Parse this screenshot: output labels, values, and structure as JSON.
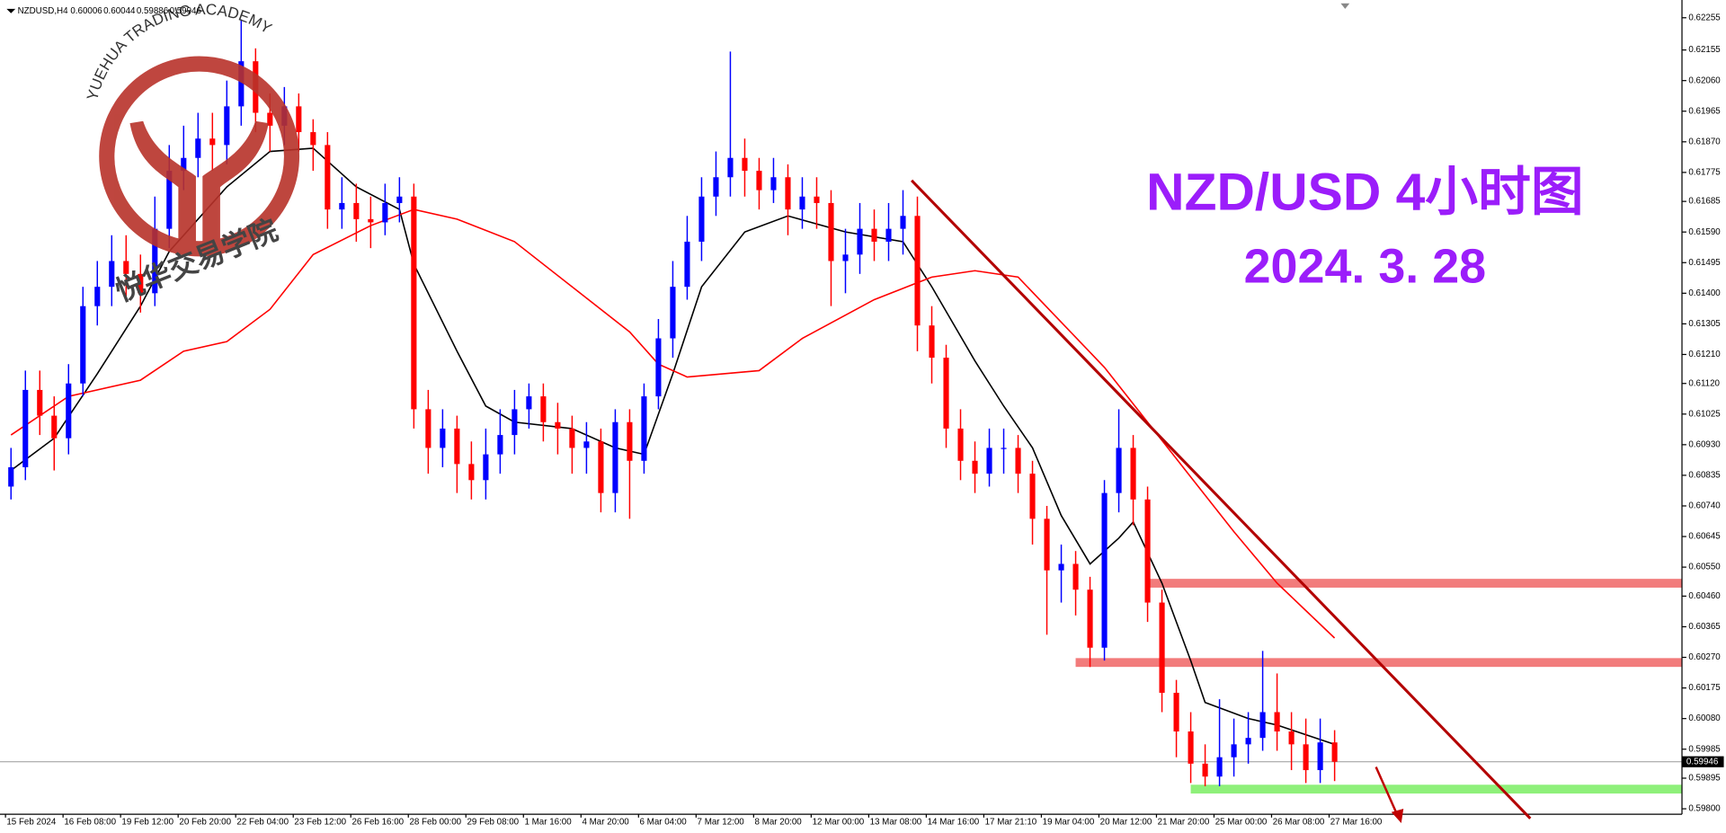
{
  "chart_data": {
    "type": "candlestick",
    "symbol": "NZDUSD,H4",
    "title": "NZD/USD 4小时图",
    "subtitle": "2024. 3. 28",
    "watermark": {
      "text_en": "YUEHUA TRADING ACADEMY",
      "text_cn": "悦华交易学院"
    },
    "up_color": "#0000ff",
    "down_color": "#ff0000",
    "categories": [
      "15 Feb 2024",
      "16 Feb 08:00",
      "19 Feb 12:00",
      "20 Feb 20:00",
      "22 Feb 04:00",
      "23 Feb 12:00",
      "26 Feb 16:00",
      "28 Feb 00:00",
      "29 Feb 08:00",
      "1 Mar 16:00",
      "4 Mar 20:00",
      "6 Mar 04:00",
      "7 Mar 12:00",
      "8 Mar 20:00",
      "12 Mar 00:00",
      "13 Mar 08:00",
      "14 Mar 16:00",
      "17 Mar 21:10",
      "19 Mar 04:00",
      "20 Mar 12:00",
      "21 Mar 20:00",
      "25 Mar 00:00",
      "26 Mar 08:00",
      "27 Mar 16:00"
    ],
    "open": [
      0.608,
      0.6086,
      0.611,
      0.6102,
      0.6095,
      0.6112,
      0.6136,
      0.6142,
      0.615,
      0.6146,
      0.614,
      0.616,
      0.6178,
      0.6182,
      0.6188,
      0.6186,
      0.6198,
      0.6212,
      0.6196,
      0.6192,
      0.6198,
      0.619,
      0.6186,
      0.6166,
      0.6168,
      0.6163,
      0.6162,
      0.6168,
      0.617,
      0.6104,
      0.6092,
      0.6098,
      0.6087,
      0.6082,
      0.609,
      0.6096,
      0.6104,
      0.6108,
      0.61,
      0.6098,
      0.6092,
      0.6094,
      0.6078,
      0.61,
      0.6088,
      0.6108,
      0.6126,
      0.6142,
      0.6156,
      0.617,
      0.6176,
      0.6182,
      0.6178,
      0.6172,
      0.6176,
      0.6166,
      0.617,
      0.6168,
      0.615,
      0.6152,
      0.616,
      0.6156,
      0.616,
      0.6164,
      0.613,
      0.612,
      0.6098,
      0.6088,
      0.6084,
      0.6092,
      0.6092,
      0.6084,
      0.607,
      0.6054,
      0.6056,
      0.6048,
      0.603,
      0.6078,
      0.6092,
      0.6076,
      0.6044,
      0.6016,
      0.6004,
      0.5994,
      0.599,
      0.5996,
      0.6,
      0.6002,
      0.601,
      0.6004,
      0.6,
      0.5992,
      0.60006
    ],
    "high": [
      0.6092,
      0.6116,
      0.6116,
      0.6108,
      0.6118,
      0.6142,
      0.615,
      0.6158,
      0.6158,
      0.6152,
      0.617,
      0.6186,
      0.6192,
      0.6196,
      0.6196,
      0.6206,
      0.6225,
      0.6216,
      0.6202,
      0.6204,
      0.6202,
      0.6194,
      0.619,
      0.6176,
      0.6174,
      0.617,
      0.6174,
      0.6176,
      0.6174,
      0.611,
      0.6104,
      0.6102,
      0.6094,
      0.6098,
      0.6104,
      0.611,
      0.6112,
      0.6112,
      0.6106,
      0.6102,
      0.61,
      0.6098,
      0.6104,
      0.6104,
      0.6112,
      0.6132,
      0.615,
      0.6164,
      0.6176,
      0.6184,
      0.6215,
      0.6188,
      0.6182,
      0.6182,
      0.618,
      0.6176,
      0.6176,
      0.6172,
      0.616,
      0.6168,
      0.6166,
      0.6168,
      0.6172,
      0.617,
      0.6136,
      0.6124,
      0.6104,
      0.6094,
      0.6098,
      0.6098,
      0.6096,
      0.6088,
      0.6074,
      0.6062,
      0.606,
      0.6052,
      0.6082,
      0.6104,
      0.6096,
      0.608,
      0.6048,
      0.602,
      0.601,
      0.6,
      0.6014,
      0.6008,
      0.601,
      0.6029,
      0.6022,
      0.601,
      0.6008,
      0.6008,
      0.60044
    ],
    "low": [
      0.6076,
      0.6082,
      0.6096,
      0.6085,
      0.609,
      0.6108,
      0.613,
      0.6136,
      0.6138,
      0.6134,
      0.6136,
      0.6154,
      0.6172,
      0.6176,
      0.6178,
      0.618,
      0.6192,
      0.619,
      0.6184,
      0.6186,
      0.6184,
      0.6178,
      0.616,
      0.616,
      0.6156,
      0.6154,
      0.6158,
      0.6162,
      0.6098,
      0.6084,
      0.6086,
      0.6078,
      0.6076,
      0.6076,
      0.6084,
      0.609,
      0.6098,
      0.6094,
      0.609,
      0.6084,
      0.6084,
      0.6072,
      0.6072,
      0.607,
      0.6084,
      0.6104,
      0.612,
      0.6138,
      0.615,
      0.6164,
      0.617,
      0.617,
      0.6166,
      0.6168,
      0.6158,
      0.616,
      0.616,
      0.6136,
      0.614,
      0.6146,
      0.615,
      0.615,
      0.6152,
      0.6122,
      0.6112,
      0.6092,
      0.6082,
      0.6078,
      0.608,
      0.6084,
      0.6078,
      0.6062,
      0.6034,
      0.6044,
      0.604,
      0.6024,
      0.6026,
      0.6072,
      0.6068,
      0.6038,
      0.601,
      0.5996,
      0.5988,
      0.5987,
      0.5987,
      0.599,
      0.5994,
      0.5998,
      0.5998,
      0.5992,
      0.5988,
      0.5988,
      0.59886
    ],
    "close": [
      0.6086,
      0.611,
      0.6102,
      0.6095,
      0.6112,
      0.6136,
      0.6142,
      0.615,
      0.6146,
      0.614,
      0.616,
      0.6178,
      0.6182,
      0.6188,
      0.6186,
      0.6198,
      0.6212,
      0.6196,
      0.6192,
      0.6198,
      0.619,
      0.6186,
      0.6166,
      0.6168,
      0.6163,
      0.6162,
      0.6168,
      0.617,
      0.6104,
      0.6092,
      0.6098,
      0.6087,
      0.6082,
      0.609,
      0.6096,
      0.6104,
      0.6108,
      0.61,
      0.6098,
      0.6092,
      0.6094,
      0.6078,
      0.61,
      0.6088,
      0.6108,
      0.6126,
      0.6142,
      0.6156,
      0.617,
      0.6176,
      0.6182,
      0.6178,
      0.6172,
      0.6176,
      0.6166,
      0.617,
      0.6168,
      0.615,
      0.6152,
      0.616,
      0.6156,
      0.616,
      0.6164,
      0.613,
      0.612,
      0.6098,
      0.6088,
      0.6084,
      0.6092,
      0.6092,
      0.6084,
      0.607,
      0.6054,
      0.6056,
      0.6048,
      0.603,
      0.6078,
      0.6092,
      0.6076,
      0.6044,
      0.6016,
      0.6004,
      0.5994,
      0.599,
      0.5996,
      0.6,
      0.6002,
      0.601,
      0.6004,
      0.6,
      0.5992,
      0.60006,
      0.59946
    ],
    "lines": [
      {
        "color": "#000000",
        "x": [
          0,
          3,
          6,
          9,
          11,
          15,
          18,
          21,
          24,
          27,
          28,
          31,
          33,
          35,
          39,
          42,
          44,
          46,
          48,
          51,
          54,
          58,
          62,
          64,
          67,
          69,
          71,
          73,
          75,
          77,
          78,
          80,
          82,
          83,
          86,
          88,
          92
        ],
        "values": [
          0.6085,
          0.6095,
          0.6115,
          0.6136,
          0.6153,
          0.6173,
          0.6184,
          0.6185,
          0.6173,
          0.6166,
          0.6149,
          0.6122,
          0.6105,
          0.61,
          0.6098,
          0.6092,
          0.609,
          0.6115,
          0.6142,
          0.6159,
          0.6164,
          0.6159,
          0.6156,
          0.6142,
          0.6119,
          0.6105,
          0.6092,
          0.6071,
          0.6056,
          0.6064,
          0.6069,
          0.605,
          0.6026,
          0.6013,
          0.6008,
          0.6006,
          0.6
        ]
      },
      {
        "color": "#ff0000",
        "x": [
          0,
          4,
          9,
          12,
          15,
          18,
          21,
          25,
          28,
          31,
          35,
          39,
          43,
          45,
          47,
          52,
          55,
          60,
          64,
          67,
          70,
          73,
          76,
          79,
          82,
          85,
          88,
          92
        ],
        "values": [
          0.6096,
          0.6108,
          0.6113,
          0.6122,
          0.6125,
          0.6135,
          0.6152,
          0.6161,
          0.6166,
          0.6163,
          0.6156,
          0.6142,
          0.6128,
          0.6118,
          0.6114,
          0.6116,
          0.6126,
          0.6138,
          0.6145,
          0.6147,
          0.6145,
          0.6131,
          0.6117,
          0.61,
          0.6083,
          0.6066,
          0.605,
          0.6033
        ]
      }
    ],
    "levels": [
      {
        "value": 0.605,
        "from": 79,
        "color": "#f27b7b"
      },
      {
        "value": 0.60254,
        "from": 74,
        "color": "#f27b7b"
      },
      {
        "value": 0.59861,
        "from": 82,
        "color": "#8ef07a"
      }
    ],
    "trendline": {
      "color": "#b30000",
      "x": [
        62.6,
        105.6
      ],
      "values": [
        0.6175,
        0.5977
      ]
    },
    "ylim": [
      0.59783,
      0.6231
    ],
    "yticks": [
      0.62255,
      0.62155,
      {
        "value": 0.6206,
        "label": "0.62060"
      },
      0.61965,
      {
        "value": 0.6187,
        "label": "0.61870"
      },
      0.61775,
      0.61685,
      {
        "value": 0.6159,
        "label": "0.61590"
      },
      0.61495,
      {
        "value": 0.614,
        "label": "0.61400"
      },
      0.61305,
      {
        "value": 0.6121,
        "label": "0.61210"
      },
      {
        "value": 0.6112,
        "label": "0.61120"
      },
      0.61025,
      {
        "value": 0.6093,
        "label": "0.60930"
      },
      0.60835,
      {
        "value": 0.6074,
        "label": "0.60740"
      },
      0.60645,
      {
        "value": 0.6055,
        "label": "0.60550"
      },
      {
        "value": 0.6046,
        "label": "0.60460"
      },
      0.60365,
      {
        "value": 0.6027,
        "label": "0.60270"
      },
      0.60175,
      {
        "value": 0.6008,
        "label": "0.60080"
      },
      0.59985,
      0.59895,
      {
        "value": 0.598,
        "label": "0.59800"
      }
    ],
    "grid": false
  }
}
